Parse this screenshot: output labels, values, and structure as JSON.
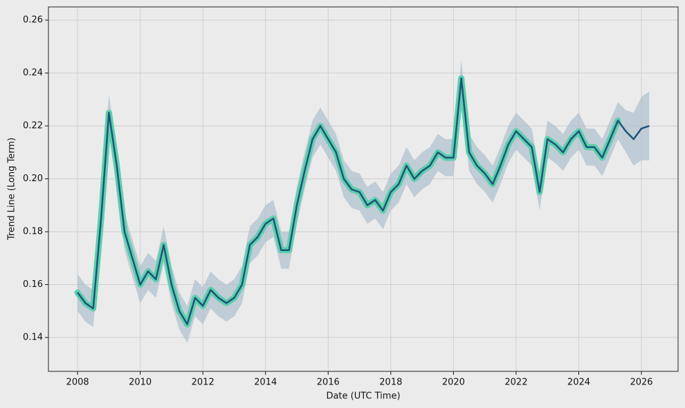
{
  "chart_data": {
    "type": "line",
    "xlabel": "Date (UTC Time)",
    "ylabel": "Trend Line (Long Term)",
    "xlim": [
      2007.07,
      2027.17
    ],
    "ylim": [
      0.1272,
      0.265
    ],
    "xticks": [
      2008,
      2010,
      2012,
      2014,
      2016,
      2018,
      2020,
      2022,
      2024,
      2026
    ],
    "yticks": [
      0.14,
      0.16,
      0.18,
      {
        "value": 0.2,
        "label": "0.20"
      },
      0.22,
      0.24,
      0.26
    ],
    "grid": true,
    "x": [
      2008,
      2008.25,
      2008.5,
      2008.75,
      2009,
      2009.25,
      2009.5,
      2009.75,
      2010,
      2010.25,
      2010.5,
      2010.75,
      2011,
      2011.25,
      2011.5,
      2011.75,
      2012,
      2012.25,
      2012.5,
      2012.75,
      2013,
      2013.25,
      2013.5,
      2013.75,
      2014,
      2014.25,
      2014.5,
      2014.75,
      2015,
      2015.25,
      2015.5,
      2015.75,
      2016,
      2016.25,
      2016.5,
      2016.75,
      2017,
      2017.25,
      2017.5,
      2017.75,
      2018,
      2018.25,
      2018.5,
      2018.75,
      2019,
      2019.25,
      2019.5,
      2019.75,
      2020,
      2020.25,
      2020.5,
      2020.75,
      2021,
      2021.25,
      2021.5,
      2021.75,
      2022,
      2022.25,
      2022.5,
      2022.75,
      2023,
      2023.25,
      2023.5,
      2023.75,
      2024,
      2024.25,
      2024.5,
      2024.75,
      2025,
      2025.25,
      2025.5,
      2025.75,
      2026,
      2026.25
    ],
    "band": {
      "color": "#a9bccb",
      "lower": [
        0.15,
        0.146,
        0.144,
        0.178,
        0.218,
        0.198,
        0.173,
        0.163,
        0.153,
        0.158,
        0.155,
        0.168,
        0.153,
        0.143,
        0.138,
        0.148,
        0.145,
        0.151,
        0.148,
        0.146,
        0.148,
        0.153,
        0.168,
        0.171,
        0.176,
        0.178,
        0.166,
        0.166,
        0.183,
        0.196,
        0.208,
        0.213,
        0.208,
        0.203,
        0.193,
        0.189,
        0.188,
        0.183,
        0.185,
        0.181,
        0.188,
        0.191,
        0.198,
        0.193,
        0.196,
        0.198,
        0.203,
        0.201,
        0.201,
        0.231,
        0.203,
        0.198,
        0.195,
        0.191,
        0.198,
        0.206,
        0.211,
        0.208,
        0.205,
        0.188,
        0.208,
        0.206,
        0.203,
        0.208,
        0.211,
        0.205,
        0.205,
        0.201,
        0.208,
        0.215,
        0.21,
        0.205,
        0.207,
        0.207
      ],
      "upper": [
        0.164,
        0.16,
        0.158,
        0.192,
        0.232,
        0.212,
        0.187,
        0.177,
        0.167,
        0.172,
        0.169,
        0.182,
        0.167,
        0.157,
        0.152,
        0.162,
        0.159,
        0.165,
        0.162,
        0.16,
        0.162,
        0.167,
        0.182,
        0.185,
        0.19,
        0.192,
        0.18,
        0.18,
        0.197,
        0.21,
        0.222,
        0.227,
        0.222,
        0.217,
        0.207,
        0.203,
        0.202,
        0.197,
        0.199,
        0.195,
        0.202,
        0.205,
        0.212,
        0.207,
        0.21,
        0.212,
        0.217,
        0.215,
        0.215,
        0.245,
        0.217,
        0.212,
        0.209,
        0.205,
        0.212,
        0.22,
        0.225,
        0.222,
        0.219,
        0.202,
        0.222,
        0.22,
        0.217,
        0.222,
        0.225,
        0.219,
        0.219,
        0.215,
        0.222,
        0.229,
        0.226,
        0.225,
        0.231,
        0.233
      ]
    },
    "fit": {
      "color": "#5ccfae",
      "values": [
        0.157,
        0.153,
        0.151,
        0.185,
        0.225,
        0.205,
        0.18,
        0.17,
        0.16,
        0.165,
        0.162,
        0.175,
        0.16,
        0.15,
        0.145,
        0.155,
        0.152,
        0.158,
        0.155,
        0.153,
        0.155,
        0.16,
        0.175,
        0.178,
        0.183,
        0.185,
        0.173,
        0.173,
        0.19,
        0.203,
        0.215,
        0.22,
        0.215,
        0.21,
        0.2,
        0.196,
        0.195,
        0.19,
        0.192,
        0.188,
        0.195,
        0.198,
        0.205,
        0.2,
        0.203,
        0.205,
        0.21,
        0.208,
        0.208,
        0.238,
        0.21,
        0.205,
        0.202,
        0.198,
        0.205,
        0.213,
        0.218,
        0.215,
        0.212,
        0.195,
        0.215,
        0.213,
        0.21,
        0.215,
        0.218,
        0.212,
        0.212,
        0.208,
        0.215,
        0.222,
        null,
        null,
        null,
        null
      ]
    },
    "series": [
      {
        "color": "#1d5576",
        "values": [
          0.157,
          0.153,
          0.151,
          0.185,
          0.225,
          0.205,
          0.18,
          0.17,
          0.16,
          0.165,
          0.162,
          0.175,
          0.16,
          0.15,
          0.145,
          0.155,
          0.152,
          0.158,
          0.155,
          0.153,
          0.155,
          0.16,
          0.175,
          0.178,
          0.183,
          0.185,
          0.173,
          0.173,
          0.19,
          0.203,
          0.215,
          0.22,
          0.215,
          0.21,
          0.2,
          0.196,
          0.195,
          0.19,
          0.192,
          0.188,
          0.195,
          0.198,
          0.205,
          0.2,
          0.203,
          0.205,
          0.21,
          0.208,
          0.208,
          0.238,
          0.21,
          0.205,
          0.202,
          0.198,
          0.205,
          0.213,
          0.218,
          0.215,
          0.212,
          0.195,
          0.215,
          0.213,
          0.21,
          0.215,
          0.218,
          0.212,
          0.212,
          0.208,
          0.215,
          0.222,
          0.218,
          0.215,
          0.219,
          0.22
        ]
      }
    ]
  }
}
